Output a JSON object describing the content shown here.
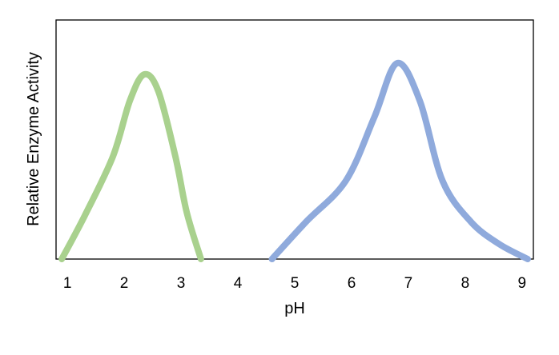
{
  "chart_data": {
    "type": "line",
    "title": "",
    "xlabel": "pH",
    "ylabel": "Relative Enzyme Activity",
    "xlim": [
      0.8,
      9.2
    ],
    "ylim": [
      0,
      1
    ],
    "x_ticks": [
      1,
      2,
      3,
      4,
      5,
      6,
      7,
      8,
      9
    ],
    "x_tick_labels": [
      "1",
      "2",
      "3",
      "4",
      "5",
      "6",
      "7",
      "8",
      "9"
    ],
    "y_ticks_shown": false,
    "grid": false,
    "legend": "none",
    "series": [
      {
        "color": "#a9d18e",
        "x": [
          0.9,
          1.3,
          1.8,
          2.1,
          2.35,
          2.6,
          2.9,
          3.1,
          3.35
        ],
        "y": [
          0.0,
          0.23,
          0.55,
          0.85,
          0.99,
          0.9,
          0.55,
          0.25,
          0.0
        ]
      },
      {
        "color": "#8faadc",
        "x": [
          4.6,
          5.2,
          5.9,
          6.4,
          6.8,
          7.2,
          7.6,
          8.1,
          8.6,
          9.1
        ],
        "y": [
          0.0,
          0.2,
          0.42,
          0.76,
          1.05,
          0.85,
          0.42,
          0.2,
          0.08,
          0.0
        ]
      }
    ]
  }
}
